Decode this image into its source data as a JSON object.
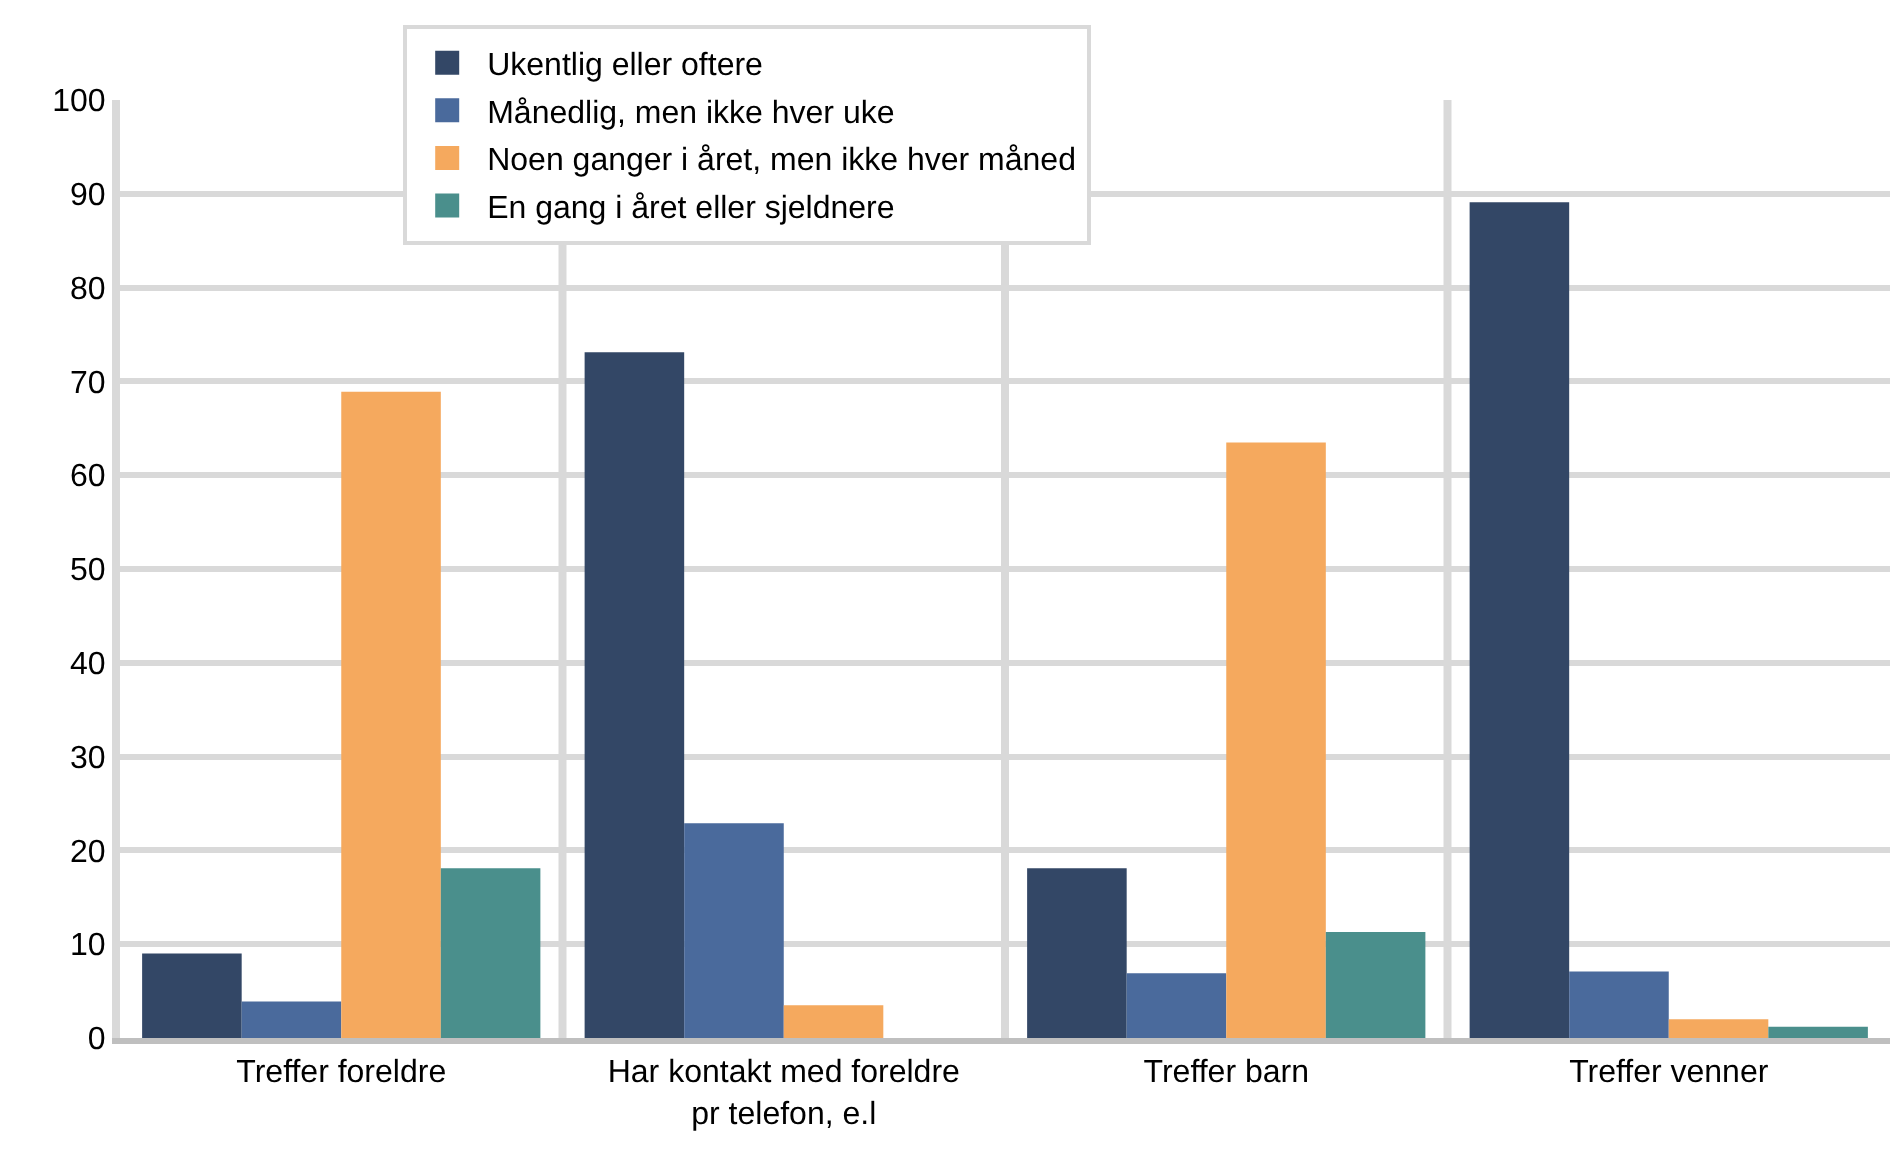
{
  "chart_data": {
    "type": "bar",
    "categories": [
      "Treffer foreldre",
      "Har kontakt med foreldre pr telefon, e.l",
      "Treffer barn",
      "Treffer venner"
    ],
    "series": [
      {
        "name": "Ukentlig eller oftere",
        "color": "#334766",
        "values": [
          9.0,
          73.1,
          18.1,
          89.1
        ]
      },
      {
        "name": "Månedlig, men ikke hver uke",
        "color": "#4a6a9c",
        "values": [
          3.9,
          22.9,
          6.9,
          7.1
        ]
      },
      {
        "name": "Noen ganger i året, men ikke hver måned",
        "color": "#f5a95e",
        "values": [
          68.9,
          3.5,
          63.5,
          2.0
        ]
      },
      {
        "name": "En gang i året eller sjeldnere",
        "color": "#4a8f8c",
        "values": [
          18.1,
          0,
          11.3,
          1.2
        ]
      }
    ],
    "ylim": [
      0,
      100
    ],
    "yticks": [
      0,
      10,
      20,
      30,
      40,
      50,
      60,
      70,
      80,
      90,
      100
    ],
    "grid": true,
    "legend": "top"
  }
}
